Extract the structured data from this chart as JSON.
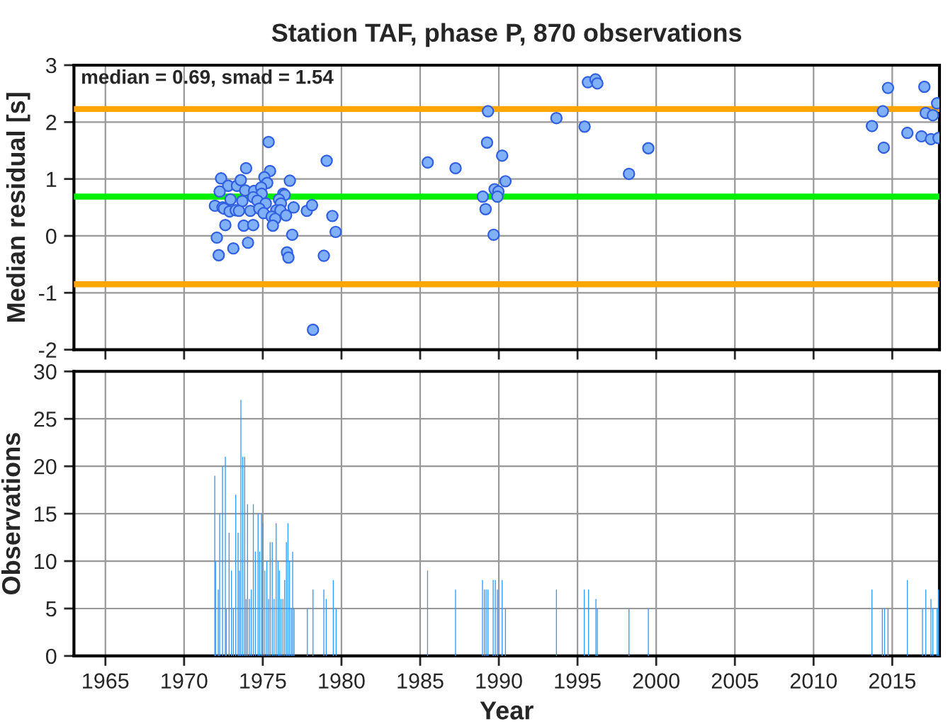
{
  "chart_data": [
    {
      "type": "scatter",
      "title": "Station TAF, phase P, 870 observations",
      "ylabel": "Median residual [s]",
      "xlim": [
        1963,
        2018
      ],
      "xticks": [
        1965,
        1970,
        1975,
        1980,
        1985,
        1990,
        1995,
        2000,
        2005,
        2010,
        2015
      ],
      "ylim": [
        -2,
        3
      ],
      "yticks": [
        -2,
        -1,
        0,
        1,
        2,
        3
      ],
      "tick_labels": "y",
      "grid": true,
      "marker": "circle",
      "annotations": [
        "median = 0.69, smad = 1.54"
      ],
      "ref_lines": [
        {
          "axis": "y",
          "value": 0.69,
          "color": "#00ee00"
        },
        {
          "axis": "y",
          "value": 2.23,
          "color": "#ffa500"
        },
        {
          "axis": "y",
          "value": -0.85,
          "color": "#ffa500"
        }
      ],
      "series": [
        {
          "color": "#80b0f8",
          "x": [
            1975.37,
            1979.06,
            1985.48,
            1973.94,
            1975.46,
            1972.35,
            1975.1,
            1975.28,
            1976.72,
            1972.8,
            1973.36,
            1973.6,
            1972.26,
            1973.88,
            1974.45,
            1974.9,
            1974.93,
            1974.39,
            1974.66,
            1972.95,
            1973.7,
            1975.19,
            1976.3,
            1976.39,
            1976.03,
            1976.15,
            1971.96,
            1972.44,
            1972.53,
            1972.89,
            1973.28,
            1973.49,
            1974.21,
            1974.78,
            1975.05,
            1975.86,
            1976.12,
            1976.96,
            1977.8,
            1978.13,
            1976.48,
            1975.56,
            1975.79,
            1975.64,
            1972.62,
            1973.79,
            1974.39,
            1979.42,
            1979.63,
            1972.08,
            1976.87,
            1974.06,
            1973.13,
            1972.2,
            1976.54,
            1976.63,
            1978.88,
            1978.19,
            1987.25,
            1989.31,
            1989.25,
            1990.21,
            1990.42,
            1989.73,
            1989.97,
            1988.98,
            1989.91,
            1989.16,
            1989.67,
            1993.66,
            1995.45,
            1995.66,
            1996.14,
            1996.26,
            1998.27,
            1999.5,
            2013.71,
            2014.4,
            2014.73,
            2014.46,
            2015.96,
            2017.04,
            2017.13,
            2017.58,
            2016.86,
            2017.46,
            2017.85,
            2017.94
          ],
          "values": [
            1.65,
            1.32,
            1.29,
            1.19,
            1.14,
            1.01,
            1.03,
            0.93,
            0.97,
            0.88,
            0.88,
            0.98,
            0.78,
            0.8,
            0.79,
            0.85,
            0.74,
            0.68,
            0.62,
            0.64,
            0.61,
            0.57,
            0.74,
            0.72,
            0.64,
            0.57,
            0.53,
            0.5,
            0.48,
            0.43,
            0.45,
            0.44,
            0.44,
            0.48,
            0.4,
            0.45,
            0.45,
            0.5,
            0.44,
            0.54,
            0.36,
            0.34,
            0.3,
            0.18,
            0.19,
            0.18,
            0.19,
            0.35,
            0.07,
            -0.03,
            0.02,
            -0.12,
            -0.22,
            -0.34,
            -0.29,
            -0.38,
            -0.35,
            -1.65,
            1.19,
            2.19,
            1.64,
            1.41,
            0.96,
            0.82,
            0.78,
            0.69,
            0.69,
            0.47,
            0.02,
            2.07,
            1.92,
            2.7,
            2.75,
            2.68,
            1.09,
            1.54,
            1.93,
            2.19,
            2.6,
            1.55,
            1.81,
            2.62,
            2.16,
            2.12,
            1.75,
            1.7,
            2.33,
            1.72
          ]
        }
      ]
    },
    {
      "type": "bar",
      "xlabel": "Year",
      "ylabel": "Observations",
      "xlim": [
        1963,
        2018
      ],
      "xticks": [
        1965,
        1970,
        1975,
        1980,
        1985,
        1990,
        1995,
        2000,
        2005,
        2010,
        2015
      ],
      "ylim": [
        0,
        30
      ],
      "yticks": [
        0,
        5,
        10,
        15,
        20,
        25,
        30
      ],
      "grid": true,
      "series": [
        {
          "color": "#3399ff",
          "x": [
            1971.95,
            1972.0,
            1972.17,
            1972.26,
            1972.44,
            1972.62,
            1972.68,
            1972.86,
            1973.01,
            1973.13,
            1973.28,
            1973.43,
            1973.52,
            1973.61,
            1973.73,
            1973.85,
            1973.94,
            1974.03,
            1974.15,
            1974.27,
            1974.4,
            1974.53,
            1974.7,
            1974.8,
            1974.92,
            1975.02,
            1975.13,
            1975.26,
            1975.37,
            1975.47,
            1975.6,
            1975.72,
            1975.85,
            1975.97,
            1976.06,
            1976.16,
            1976.28,
            1976.39,
            1976.5,
            1976.6,
            1976.7,
            1976.81,
            1976.9,
            1976.99,
            1977.83,
            1978.19,
            1978.88,
            1979.03,
            1979.48,
            1979.66,
            1985.47,
            1987.25,
            1988.96,
            1989.08,
            1989.19,
            1989.31,
            1989.64,
            1989.78,
            1989.91,
            1990.21,
            1990.42,
            1993.66,
            1995.43,
            1995.7,
            1996.17,
            1996.26,
            1998.27,
            1999.5,
            2013.71,
            2014.37,
            2014.51,
            2014.73,
            2015.96,
            2016.92,
            2017.13,
            2017.46,
            2017.58,
            2017.85,
            2017.95
          ],
          "values": [
            19,
            10,
            7,
            15,
            20,
            21,
            5,
            13,
            9,
            5,
            17,
            13,
            9,
            27,
            21,
            21,
            6,
            16,
            6,
            7,
            16,
            11,
            15,
            11,
            15,
            14,
            9,
            10,
            6,
            12,
            12,
            6,
            14,
            10,
            9,
            6,
            6,
            8,
            12,
            14,
            10,
            5,
            11,
            5,
            5,
            7,
            7,
            6,
            8,
            5,
            9,
            7,
            8,
            7,
            7,
            7,
            8,
            8,
            7,
            8,
            5,
            7,
            7,
            7,
            6,
            5,
            5,
            5,
            7,
            5,
            5,
            5,
            8,
            5,
            7,
            6,
            5,
            5,
            7
          ]
        }
      ]
    }
  ]
}
